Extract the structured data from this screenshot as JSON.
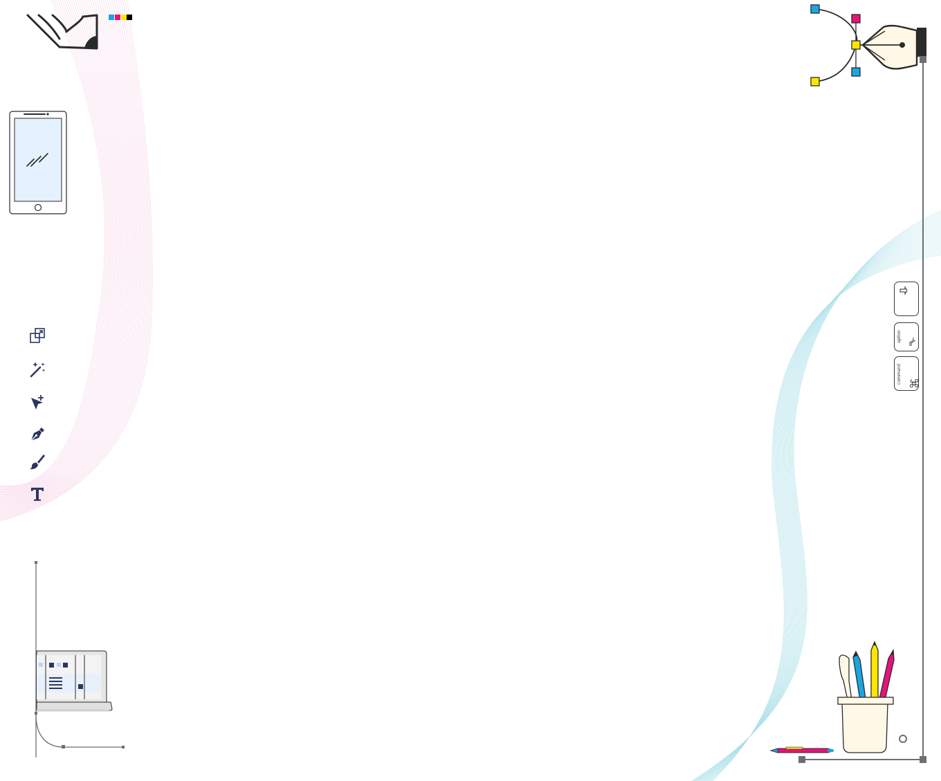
{
  "colors": {
    "navy": "#2b3561",
    "cyan": "#1ba5e1",
    "magenta": "#e6137a",
    "yellow": "#ffe600",
    "black": "#000000",
    "stroke": "#2a2a2a",
    "guide": "#6b6f73",
    "wave_pink": "#f2b6d6",
    "wave_cyan": "#a9dfe8",
    "cream": "#fff8e6",
    "phone_screen": "#e4f1ff"
  },
  "brand": {
    "logo_icon": "pencil-logo-icon",
    "cmyk_swatches": [
      "cyan",
      "magenta",
      "yellow",
      "black"
    ]
  },
  "tools": [
    {
      "name": "artboard-tool",
      "icon": "artboard-icon"
    },
    {
      "name": "magic-wand-tool",
      "icon": "magic-wand-icon"
    },
    {
      "name": "direct-select-tool",
      "icon": "direct-select-arrow-icon"
    },
    {
      "name": "pen-tool",
      "icon": "pen-nib-icon"
    },
    {
      "name": "brush-tool",
      "icon": "paintbrush-icon"
    },
    {
      "name": "type-tool",
      "icon": "type-t-icon"
    }
  ],
  "keycaps": [
    {
      "label": "",
      "icon": "shift-arrow-icon"
    },
    {
      "label": "option",
      "icon": "option-key-icon"
    },
    {
      "label": "command",
      "icon": "command-key-icon"
    }
  ],
  "illustrations": [
    "phone",
    "pen-tool-bezier",
    "laptop",
    "pencil-cup",
    "pen"
  ]
}
